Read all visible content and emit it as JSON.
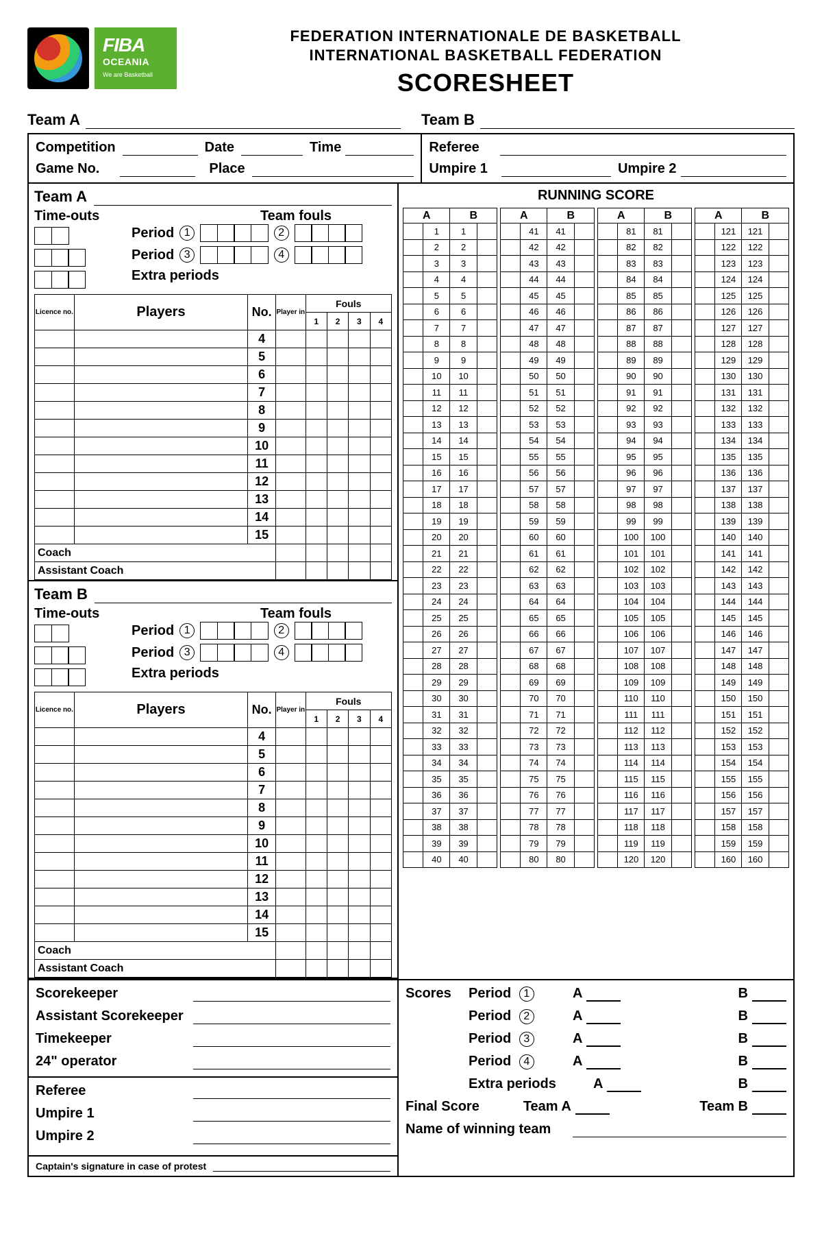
{
  "logo": {
    "fiba_text": "FIBA",
    "oceania_text": "OCEANIA",
    "tagline": "We are Basketball"
  },
  "title": {
    "line1": "FEDERATION INTERNATIONALE DE BASKETBALL",
    "line2": "INTERNATIONAL BASKETBALL FEDERATION",
    "line3": "SCORESHEET"
  },
  "labels": {
    "team_a": "Team A",
    "team_b": "Team B",
    "competition": "Competition",
    "date": "Date",
    "time": "Time",
    "game_no": "Game No.",
    "place": "Place",
    "referee": "Referee",
    "umpire1": "Umpire 1",
    "umpire2": "Umpire 2",
    "timeouts": "Time-outs",
    "team_fouls": "Team fouls",
    "period": "Period",
    "extra_periods": "Extra periods",
    "licence_no": "Licence no.",
    "players": "Players",
    "no": "No.",
    "player_in": "Player in",
    "fouls": "Fouls",
    "coach": "Coach",
    "assistant_coach": "Assistant Coach",
    "running_score": "RUNNING SCORE",
    "col_a": "A",
    "col_b": "B",
    "scorekeeper": "Scorekeeper",
    "assistant_scorekeeper": "Assistant Scorekeeper",
    "timekeeper": "Timekeeper",
    "operator24": "24\" operator",
    "scores": "Scores",
    "final_score": "Final Score",
    "winning_team": "Name of winning team",
    "captain_protest": "Captain's signature in case of protest"
  },
  "periods": [
    "①",
    "②",
    "③",
    "④"
  ],
  "player_numbers": [
    4,
    5,
    6,
    7,
    8,
    9,
    10,
    11,
    12,
    13,
    14,
    15
  ],
  "foul_cols": [
    "1",
    "2",
    "3",
    "4"
  ],
  "running_score": {
    "cols": [
      {
        "start": 1,
        "end": 40
      },
      {
        "start": 41,
        "end": 80
      },
      {
        "start": 81,
        "end": 120
      },
      {
        "start": 121,
        "end": 160
      }
    ]
  }
}
